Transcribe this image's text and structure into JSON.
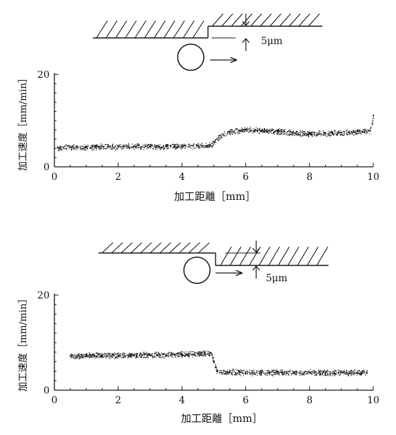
{
  "chart_data": [
    {
      "type": "scatter",
      "title": "",
      "xlabel": "加工距離［mm］",
      "ylabel": "加工速度［mm/min］",
      "xlim": [
        0,
        10
      ],
      "ylim": [
        0,
        20
      ],
      "xticks": [
        "0",
        "2",
        "4",
        "6",
        "8",
        "10"
      ],
      "yticks": [
        "0",
        "20"
      ],
      "grid": false,
      "legend": "none",
      "annotation": "5μm",
      "step": "up",
      "series": [
        {
          "x": [
            0.1,
            0.5,
            1.0,
            1.5,
            2.0,
            2.5,
            3.0,
            3.5,
            4.0,
            4.5,
            4.9,
            5.0,
            5.2,
            5.5,
            5.8,
            6.0,
            6.5,
            7.0,
            7.5,
            8.0,
            8.5,
            9.0,
            9.5,
            9.9,
            10.0
          ],
          "y": [
            4.2,
            4.3,
            4.3,
            4.4,
            4.4,
            4.5,
            4.4,
            4.5,
            4.5,
            4.6,
            4.6,
            5.5,
            6.8,
            7.6,
            7.9,
            8.1,
            7.9,
            7.7,
            7.4,
            7.2,
            7.3,
            7.4,
            7.6,
            7.8,
            11.0
          ]
        }
      ]
    },
    {
      "type": "scatter",
      "title": "",
      "xlabel": "加工距離［mm］",
      "ylabel": "加工速度［mm/min］",
      "xlim": [
        0,
        10
      ],
      "ylim": [
        0,
        20
      ],
      "xticks": [
        "0",
        "2",
        "4",
        "6",
        "8",
        "10"
      ],
      "yticks": [
        "0",
        "20"
      ],
      "grid": false,
      "legend": "none",
      "annotation": "5μm",
      "step": "down",
      "series": [
        {
          "x": [
            0.5,
            1.0,
            1.5,
            2.0,
            2.5,
            3.0,
            3.5,
            4.0,
            4.5,
            4.9,
            5.0,
            5.1,
            5.5,
            6.0,
            6.5,
            7.0,
            7.5,
            8.0,
            8.5,
            9.0,
            9.5,
            9.8
          ],
          "y": [
            7.2,
            7.3,
            7.4,
            7.3,
            7.4,
            7.5,
            7.4,
            7.6,
            7.7,
            7.8,
            6.0,
            4.0,
            3.9,
            3.8,
            3.7,
            3.8,
            3.7,
            3.8,
            3.7,
            3.8,
            3.7,
            3.8
          ]
        }
      ]
    }
  ]
}
